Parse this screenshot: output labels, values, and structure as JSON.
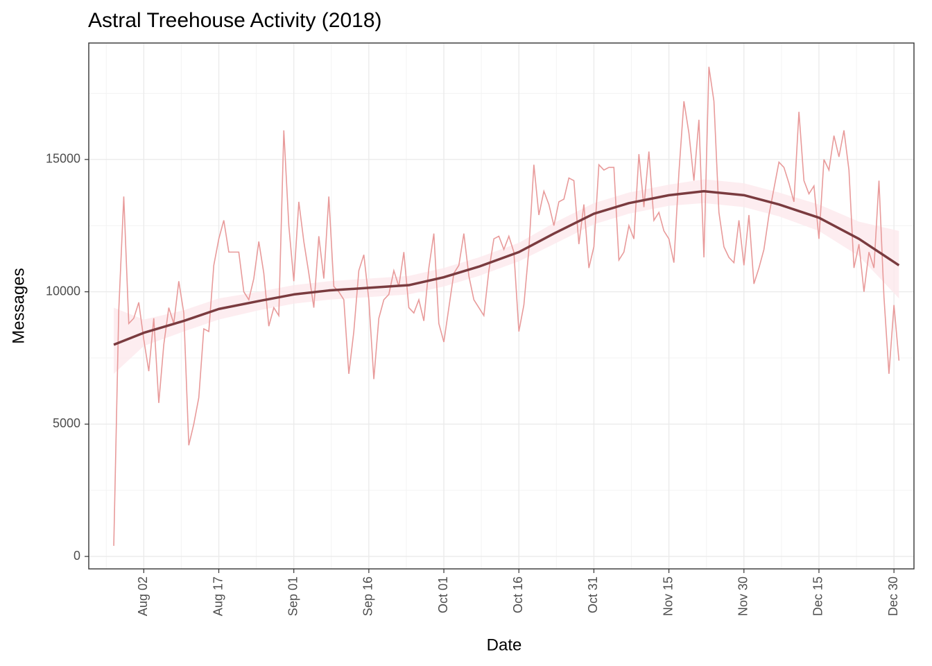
{
  "chart_data": {
    "type": "line",
    "title": "Astral Treehouse Activity (2018)",
    "x_label": "Date",
    "y_label": "Messages",
    "x": [
      "Jul 27",
      "Jul 28",
      "Jul 29",
      "Jul 30",
      "Jul 31",
      "Aug 01",
      "Aug 02",
      "Aug 03",
      "Aug 04",
      "Aug 05",
      "Aug 06",
      "Aug 07",
      "Aug 08",
      "Aug 09",
      "Aug 10",
      "Aug 11",
      "Aug 12",
      "Aug 13",
      "Aug 14",
      "Aug 15",
      "Aug 16",
      "Aug 17",
      "Aug 18",
      "Aug 19",
      "Aug 20",
      "Aug 21",
      "Aug 22",
      "Aug 23",
      "Aug 24",
      "Aug 25",
      "Aug 26",
      "Aug 27",
      "Aug 28",
      "Aug 29",
      "Aug 30",
      "Aug 31",
      "Sep 01",
      "Sep 02",
      "Sep 03",
      "Sep 04",
      "Sep 05",
      "Sep 06",
      "Sep 07",
      "Sep 08",
      "Sep 09",
      "Sep 10",
      "Sep 11",
      "Sep 12",
      "Sep 13",
      "Sep 14",
      "Sep 15",
      "Sep 16",
      "Sep 17",
      "Sep 18",
      "Sep 19",
      "Sep 20",
      "Sep 21",
      "Sep 22",
      "Sep 23",
      "Sep 24",
      "Sep 25",
      "Sep 26",
      "Sep 27",
      "Sep 28",
      "Sep 29",
      "Sep 30",
      "Oct 01",
      "Oct 02",
      "Oct 03",
      "Oct 04",
      "Oct 05",
      "Oct 06",
      "Oct 07",
      "Oct 08",
      "Oct 09",
      "Oct 10",
      "Oct 11",
      "Oct 12",
      "Oct 13",
      "Oct 14",
      "Oct 15",
      "Oct 16",
      "Oct 17",
      "Oct 18",
      "Oct 19",
      "Oct 20",
      "Oct 21",
      "Oct 22",
      "Oct 23",
      "Oct 24",
      "Oct 25",
      "Oct 26",
      "Oct 27",
      "Oct 28",
      "Oct 29",
      "Oct 30",
      "Oct 31",
      "Nov 01",
      "Nov 02",
      "Nov 03",
      "Nov 04",
      "Nov 05",
      "Nov 06",
      "Nov 07",
      "Nov 08",
      "Nov 09",
      "Nov 10",
      "Nov 11",
      "Nov 12",
      "Nov 13",
      "Nov 14",
      "Nov 15",
      "Nov 16",
      "Nov 17",
      "Nov 18",
      "Nov 19",
      "Nov 20",
      "Nov 21",
      "Nov 22",
      "Nov 23",
      "Nov 24",
      "Nov 25",
      "Nov 26",
      "Nov 27",
      "Nov 28",
      "Nov 29",
      "Nov 30",
      "Dec 01",
      "Dec 02",
      "Dec 03",
      "Dec 04",
      "Dec 05",
      "Dec 06",
      "Dec 07",
      "Dec 08",
      "Dec 09",
      "Dec 10",
      "Dec 11",
      "Dec 12",
      "Dec 13",
      "Dec 14",
      "Dec 15",
      "Dec 16",
      "Dec 17",
      "Dec 18",
      "Dec 19",
      "Dec 20",
      "Dec 21",
      "Dec 22",
      "Dec 23",
      "Dec 24",
      "Dec 25",
      "Dec 26",
      "Dec 27",
      "Dec 28",
      "Dec 29",
      "Dec 30",
      "Dec 31"
    ],
    "series": [
      {
        "color": "#e89a9a",
        "values": [
          400,
          9300,
          13600,
          8800,
          9000,
          9600,
          8200,
          7000,
          9000,
          5800,
          8000,
          9400,
          8800,
          10400,
          9200,
          4200,
          5000,
          6000,
          8600,
          8500,
          11000,
          12000,
          12700,
          11500,
          11500,
          11500,
          10000,
          9700,
          10500,
          11900,
          10700,
          8700,
          9400,
          9100,
          16100,
          12500,
          10400,
          13400,
          11900,
          10700,
          9400,
          12100,
          10500,
          13600,
          10200,
          10000,
          9700,
          6900,
          8500,
          10800,
          11400,
          9700,
          6700,
          9000,
          9700,
          9900,
          10800,
          10200,
          11500,
          9400,
          9200,
          9700,
          8900,
          10900,
          12200,
          8800,
          8100,
          9400,
          10700,
          11000,
          12200,
          10600,
          9700,
          9400,
          9100,
          10800,
          12000,
          12100,
          11600,
          12100,
          11500,
          8500,
          9500,
          11600,
          14800,
          12900,
          13800,
          13300,
          12500,
          13400,
          13500,
          14300,
          14200,
          11800,
          13300,
          10900,
          11700,
          14800,
          14600,
          14700,
          14700,
          11200,
          11500,
          12500,
          12000,
          15200,
          13200,
          15300,
          12700,
          13000,
          12300,
          12000,
          11100,
          14500,
          17200,
          16000,
          14200,
          16500,
          11300,
          18500,
          17200,
          13000,
          11700,
          11300,
          11100,
          12700,
          11000,
          12900,
          10300,
          10900,
          11600,
          12900,
          13900,
          14900,
          14700,
          14100,
          13400,
          16800,
          14200,
          13700,
          14000,
          12000,
          15000,
          14600,
          15900,
          15100,
          16100,
          14600,
          10900,
          11800,
          10000,
          11500,
          10900,
          14200,
          9800,
          6900,
          9500,
          7400
        ]
      }
    ],
    "smooth": {
      "color": "#7a3b3f",
      "band_color": "#fde8ec",
      "x": [
        "Jul 27",
        "Aug 02",
        "Aug 10",
        "Aug 17",
        "Aug 25",
        "Sep 01",
        "Sep 08",
        "Sep 16",
        "Sep 24",
        "Oct 01",
        "Oct 08",
        "Oct 16",
        "Oct 23",
        "Oct 31",
        "Nov 07",
        "Nov 15",
        "Nov 22",
        "Nov 30",
        "Dec 07",
        "Dec 15",
        "Dec 23",
        "Dec 31"
      ],
      "values": [
        8000,
        8450,
        8900,
        9350,
        9650,
        9900,
        10050,
        10150,
        10250,
        10550,
        10950,
        11500,
        12200,
        12950,
        13350,
        13650,
        13800,
        13650,
        13300,
        12800,
        12000,
        11000
      ],
      "lower": [
        6900,
        7950,
        8500,
        8950,
        9300,
        9550,
        9700,
        9800,
        9900,
        10200,
        10600,
        11150,
        11800,
        12550,
        12950,
        13250,
        13350,
        13200,
        12850,
        12300,
        11350,
        9750
      ],
      "upper": [
        9400,
        8950,
        9300,
        9750,
        10000,
        10250,
        10400,
        10500,
        10600,
        10900,
        11300,
        11850,
        12600,
        13350,
        13750,
        14050,
        14250,
        14100,
        13750,
        13300,
        12650,
        12300
      ]
    },
    "xlim": [
      "Jul 22",
      "Jan 03"
    ],
    "ylim": [
      -470,
      19400
    ],
    "xticks": [
      "Aug 02",
      "Aug 17",
      "Sep 01",
      "Sep 16",
      "Oct 01",
      "Oct 16",
      "Oct 31",
      "Nov 15",
      "Nov 30",
      "Dec 15",
      "Dec 30"
    ],
    "yticks": [
      0,
      5000,
      10000,
      15000
    ],
    "grid": true
  }
}
